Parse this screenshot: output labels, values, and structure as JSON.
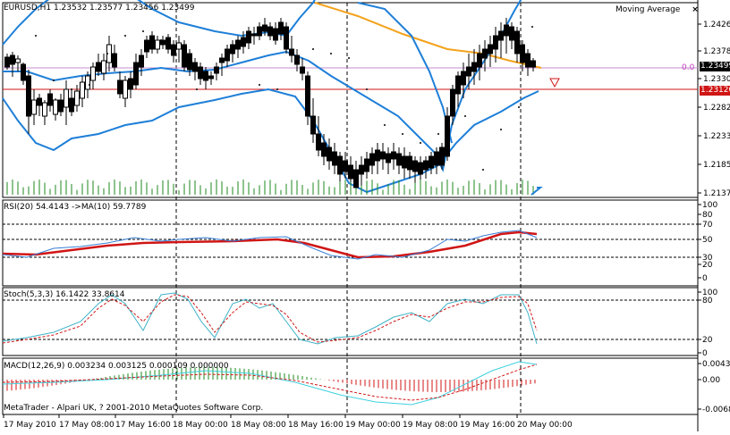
{
  "window": {
    "symbol_line": "EURUSD,H1  1.23532 1.23577 1.23456 1.23499",
    "indicator_badge": "Moving Average",
    "close_glyph": "×",
    "copyright": "MetaTrader - Alpari UK, ? 2001-2010 MetaQuotes Software Corp."
  },
  "price_axis": {
    "ticks": [
      "1.24260",
      "1.23780",
      "1.23300",
      "1.22820",
      "1.22330",
      "1.21850",
      "1.21370"
    ],
    "current_price": "1.23499",
    "line_price": "1.23120",
    "arrow_label": "0.0"
  },
  "rsi": {
    "label": "RSI(20) 54.4143  ->MA(10) 59.7789",
    "levels": [
      "100",
      "80",
      "70",
      "50",
      "30",
      "20",
      "0"
    ]
  },
  "stoch": {
    "label": "Stoch(5,3,3) 16.1422 33.8614",
    "levels": [
      "100",
      "80",
      "20",
      "0"
    ]
  },
  "macd": {
    "label": "MACD(12,26,9) 0.003234 0.003125 0.000109 0.000000",
    "levels": [
      "0.004361",
      "0.00",
      "-0.0068"
    ]
  },
  "time_axis": [
    "17 May 2010",
    "17 May 08:00",
    "17 May 16:00",
    "18 May 00:00",
    "18 May 08:00",
    "18 May 16:00",
    "19 May 00:00",
    "19 May 08:00",
    "19 May 16:00",
    "20 May 00:00"
  ],
  "colors": {
    "candle": "#000000",
    "bollinger": "#1e7fd8",
    "moving_average": "#f4a21c",
    "rsi_line": "#3a7fd5",
    "rsi_ma": "#d01515",
    "stoch_main": "#3fb3c8",
    "stoch_signal": "#d01515",
    "volume": "#1e8a1e",
    "macd_hist_up": "#1e8a1e",
    "macd_hist_down": "#d01515",
    "macd_signal": "#3fd0e0",
    "price_line": "#d01515",
    "current_tag": "#000000",
    "red_tag": "#d01515"
  }
}
